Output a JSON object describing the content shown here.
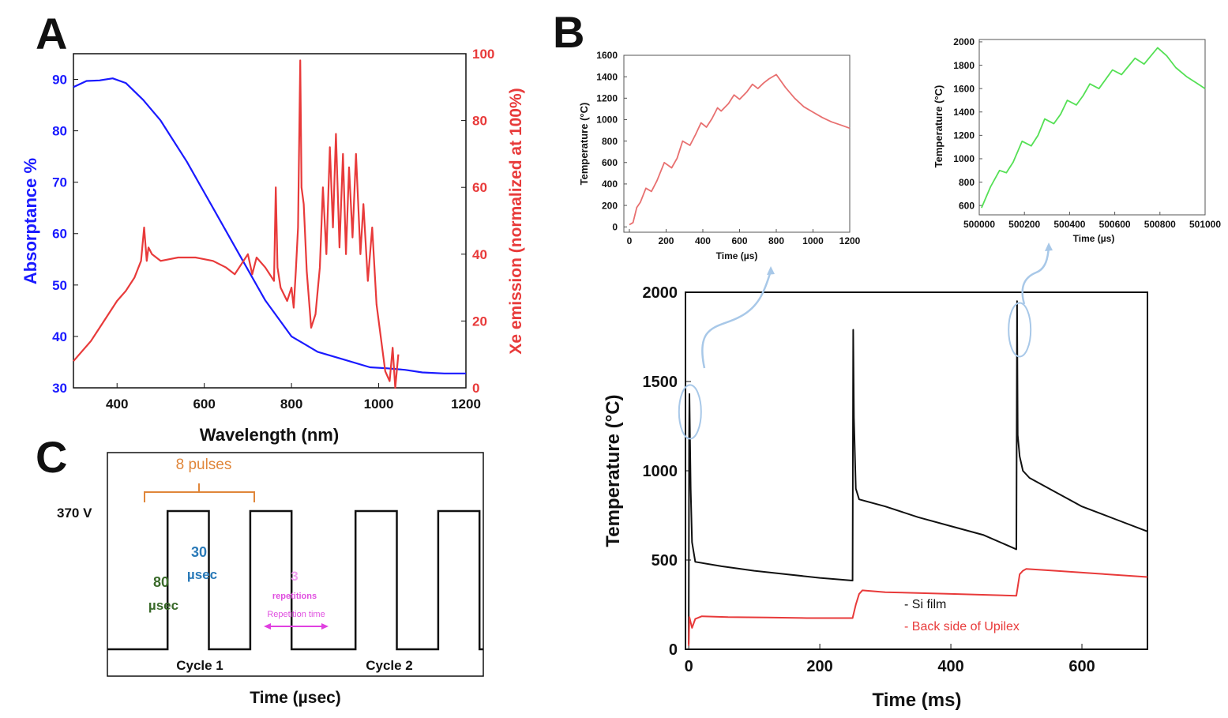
{
  "colors": {
    "blue": "#1a1aff",
    "red": "#e83a3a",
    "pink": "#e87070",
    "green": "#55e055",
    "black": "#111111",
    "orange": "#e0863a",
    "magenta": "#e040e0",
    "teal": "#2a7ab8",
    "darkgreen": "#3a6a2a",
    "arrow": "#a8c8e8"
  },
  "panels": {
    "a": "A",
    "b": "B",
    "c": "C"
  },
  "chart_data": [
    {
      "id": "panelA",
      "type": "line",
      "title": "",
      "xlabel": "Wavelength (nm)",
      "ylabel": "Absorptance %",
      "y2label": "Xe emission (normalized at 100%)",
      "xlim": [
        300,
        1200
      ],
      "ylim": [
        30,
        95
      ],
      "y2lim": [
        0,
        100
      ],
      "xticks": [
        400,
        600,
        800,
        1000,
        1200
      ],
      "yticks": [
        30,
        40,
        50,
        60,
        70,
        80,
        90
      ],
      "y2ticks": [
        0,
        20,
        40,
        60,
        80,
        100
      ],
      "series": [
        {
          "name": "Absorptance",
          "axis": "left",
          "color": "#1a1aff",
          "x": [
            300,
            330,
            360,
            390,
            420,
            460,
            500,
            560,
            620,
            680,
            740,
            800,
            860,
            920,
            980,
            1020,
            1060,
            1100,
            1150,
            1200
          ],
          "y": [
            88.5,
            89.7,
            89.8,
            90.2,
            89.3,
            86,
            82,
            74,
            65,
            56,
            47,
            40,
            37,
            35.5,
            34,
            33.8,
            33.5,
            33,
            32.8,
            32.8
          ]
        },
        {
          "name": "Xe emission",
          "axis": "right",
          "color": "#e83a3a",
          "x": [
            300,
            340,
            370,
            400,
            420,
            440,
            455,
            462,
            468,
            472,
            480,
            500,
            540,
            580,
            620,
            650,
            670,
            700,
            710,
            720,
            740,
            760,
            764,
            768,
            775,
            790,
            800,
            805,
            810,
            815,
            820,
            823,
            828,
            835,
            845,
            855,
            865,
            872,
            880,
            888,
            895,
            902,
            910,
            918,
            925,
            932,
            940,
            948,
            958,
            965,
            975,
            985,
            995,
            1005,
            1015,
            1025,
            1032,
            1038,
            1045
          ],
          "y": [
            8,
            14,
            20,
            26,
            29,
            33,
            38,
            48,
            38,
            42,
            40,
            38,
            39,
            39,
            38,
            36,
            34,
            40,
            34,
            39,
            36,
            32,
            60,
            36,
            30,
            26,
            30,
            24,
            35,
            48,
            98,
            60,
            55,
            35,
            18,
            22,
            36,
            60,
            40,
            72,
            48,
            76,
            42,
            70,
            40,
            66,
            45,
            70,
            40,
            55,
            32,
            48,
            25,
            15,
            5,
            2,
            12,
            0,
            10
          ]
        }
      ]
    },
    {
      "id": "panelB_main",
      "type": "line",
      "title": "",
      "xlabel": "Time (ms)",
      "ylabel": "Temperature (°C)",
      "xlim": [
        -5,
        700
      ],
      "ylim": [
        0,
        2000
      ],
      "xticks": [
        0,
        200,
        400,
        600
      ],
      "yticks": [
        0,
        500,
        1000,
        1500,
        2000
      ],
      "legend": [
        {
          "label": "- Si film",
          "color": "#111111"
        },
        {
          "label": "- Back side of Upilex",
          "color": "#e83a3a"
        }
      ],
      "series": [
        {
          "name": "Si film",
          "color": "#111111",
          "x": [
            0,
            0.5,
            1,
            3,
            5,
            10,
            50,
            100,
            150,
            200,
            250,
            251,
            252,
            255,
            260,
            300,
            350,
            400,
            450,
            500,
            501,
            502,
            505,
            510,
            520,
            560,
            600,
            650,
            700
          ],
          "y": [
            30,
            1200,
            1430,
            900,
            600,
            490,
            465,
            440,
            420,
            400,
            385,
            1790,
            1300,
            900,
            840,
            800,
            740,
            690,
            640,
            560,
            1950,
            1200,
            1080,
            1000,
            960,
            880,
            800,
            730,
            660
          ]
        },
        {
          "name": "Back side of Upilex",
          "color": "#e83a3a",
          "x": [
            0,
            1,
            5,
            10,
            20,
            60,
            120,
            180,
            250,
            255,
            260,
            265,
            300,
            400,
            500,
            505,
            510,
            515,
            560,
            620,
            700
          ],
          "y": [
            20,
            180,
            120,
            170,
            185,
            180,
            178,
            175,
            175,
            250,
            310,
            330,
            320,
            310,
            300,
            420,
            440,
            450,
            440,
            425,
            405
          ]
        }
      ],
      "ellipses": [
        {
          "x": 2,
          "y": 1330
        },
        {
          "x": 505,
          "y": 1790
        }
      ]
    },
    {
      "id": "panelB_inset1",
      "type": "line",
      "title": "",
      "xlabel": "Time (µs)",
      "ylabel": "Temperature (°C)",
      "xlim": [
        -30,
        1200
      ],
      "ylim": [
        -50,
        1600
      ],
      "xticks": [
        0,
        200,
        400,
        600,
        800,
        1000,
        1200
      ],
      "yticks": [
        0,
        200,
        400,
        600,
        800,
        1000,
        1200,
        1400,
        1600
      ],
      "series": [
        {
          "name": "Si film inset",
          "color": "#e87070",
          "x": [
            0,
            20,
            40,
            60,
            90,
            120,
            150,
            190,
            230,
            260,
            290,
            330,
            360,
            390,
            420,
            450,
            480,
            500,
            540,
            570,
            600,
            640,
            670,
            700,
            730,
            760,
            800,
            850,
            900,
            950,
            1000,
            1050,
            1100,
            1150,
            1200
          ],
          "y": [
            20,
            40,
            180,
            230,
            360,
            330,
            430,
            600,
            550,
            640,
            800,
            760,
            860,
            970,
            930,
            1010,
            1110,
            1080,
            1150,
            1230,
            1190,
            1260,
            1330,
            1290,
            1340,
            1380,
            1420,
            1300,
            1200,
            1120,
            1070,
            1020,
            980,
            950,
            920
          ]
        }
      ]
    },
    {
      "id": "panelB_inset2",
      "type": "line",
      "title": "",
      "xlabel": "Time (µs)",
      "ylabel": "Temperature (°C)",
      "xlim": [
        500000,
        501000
      ],
      "ylim": [
        520,
        2020
      ],
      "xticks": [
        500000,
        500200,
        500400,
        500600,
        500800,
        501000
      ],
      "yticks": [
        600,
        800,
        1000,
        1200,
        1400,
        1600,
        1800,
        2000
      ],
      "series": [
        {
          "name": "Si film inset 2",
          "color": "#55e055",
          "x": [
            500010,
            500050,
            500090,
            500120,
            500150,
            500190,
            500230,
            500260,
            500290,
            500330,
            500360,
            500390,
            500430,
            500460,
            500490,
            500530,
            500560,
            500590,
            500630,
            500660,
            500690,
            500730,
            500760,
            500790,
            500830,
            500870,
            500920,
            500960,
            501000
          ],
          "y": [
            580,
            760,
            900,
            880,
            970,
            1150,
            1110,
            1200,
            1340,
            1300,
            1380,
            1500,
            1460,
            1540,
            1640,
            1600,
            1680,
            1760,
            1720,
            1790,
            1860,
            1810,
            1880,
            1950,
            1880,
            1780,
            1700,
            1650,
            1600
          ]
        }
      ]
    },
    {
      "id": "panelC",
      "type": "line",
      "title": "",
      "xlabel": "Time (µsec)",
      "ylabel": "",
      "ytick_label": "370 V",
      "annotations": {
        "pulses": "8 pulses",
        "width_num": "80",
        "width_unit": "µsec",
        "gap_num": "30",
        "gap_unit": "µsec",
        "rep_num": "3",
        "rep_word": "repetitions",
        "rep_time": "Repetition time",
        "cycle1": "Cycle 1",
        "cycle2": "Cycle 2"
      },
      "pulses": [
        {
          "start": 0.16,
          "end": 0.27
        },
        {
          "start": 0.38,
          "end": 0.49
        },
        {
          "start": 0.66,
          "end": 0.77
        },
        {
          "start": 0.88,
          "end": 0.99
        }
      ],
      "xlim": [
        0,
        1
      ],
      "ylim": [
        0,
        1
      ]
    }
  ]
}
